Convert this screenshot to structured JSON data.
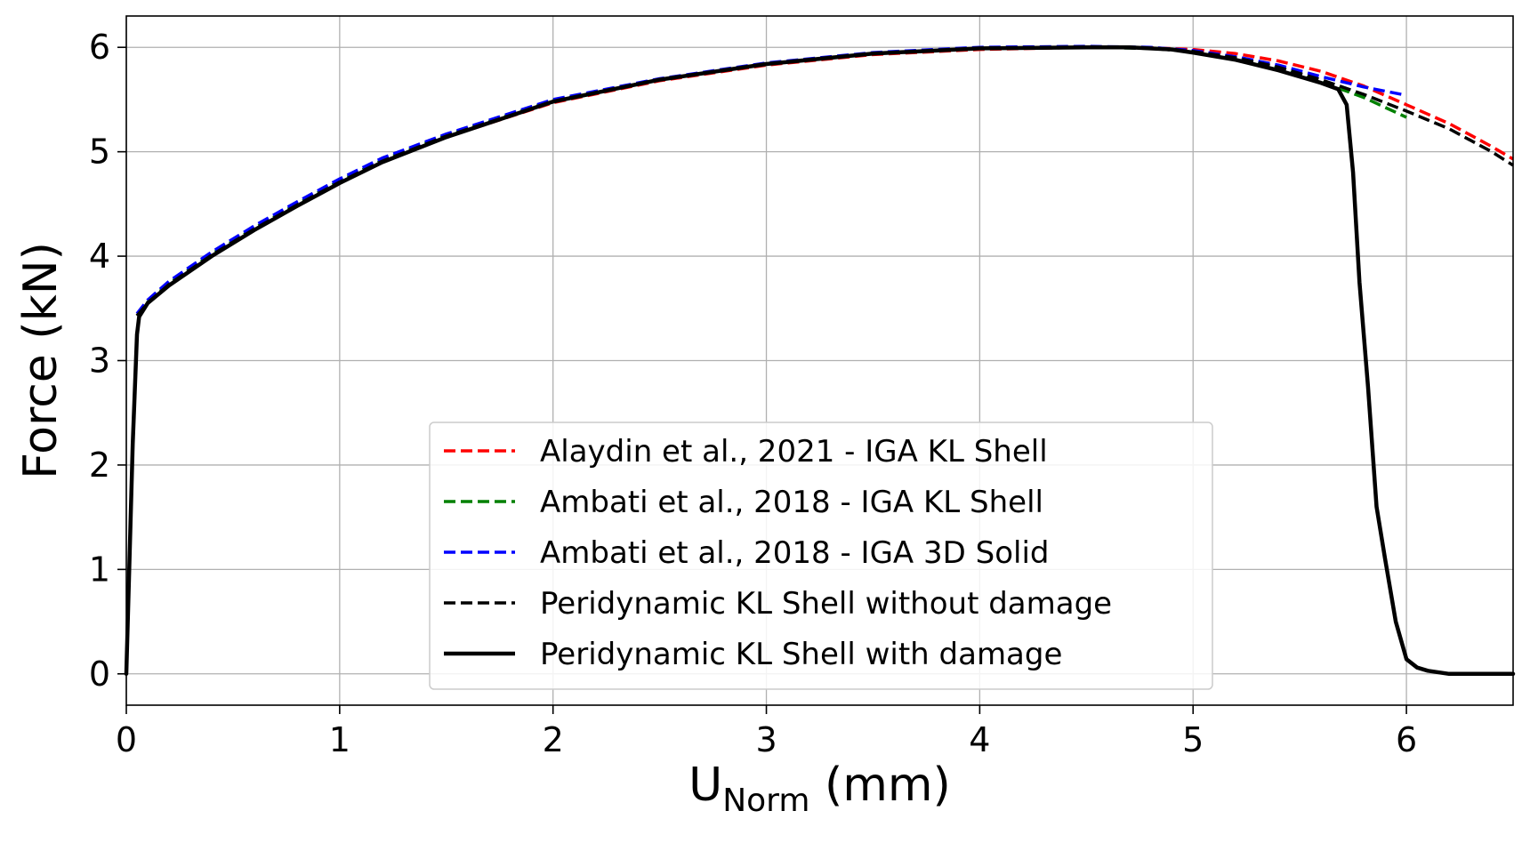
{
  "chart_data": {
    "type": "line",
    "xlabel": "U",
    "xlabel_sub": "Norm",
    "xlabel_unit": " (mm)",
    "ylabel": "Force (kN)",
    "xlim": [
      0,
      6.5
    ],
    "ylim": [
      -0.3,
      6.3
    ],
    "xticks": [
      0,
      1,
      2,
      3,
      4,
      5,
      6
    ],
    "yticks": [
      0,
      1,
      2,
      3,
      4,
      5,
      6
    ],
    "grid": true,
    "legend_position": "bottom-center",
    "series": [
      {
        "name": "Alaydin et al., 2021 - IGA KL Shell",
        "color": "#ff0000",
        "style": "dashed",
        "x": [
          0.05,
          0.1,
          0.2,
          0.4,
          0.6,
          0.8,
          1.0,
          1.2,
          1.5,
          2.0,
          2.5,
          3.0,
          3.5,
          4.0,
          4.5,
          4.8,
          5.0,
          5.2,
          5.4,
          5.6,
          5.8,
          6.0,
          6.2,
          6.4,
          6.5
        ],
        "y": [
          3.43,
          3.55,
          3.72,
          4.0,
          4.25,
          4.48,
          4.7,
          4.9,
          5.14,
          5.47,
          5.68,
          5.83,
          5.93,
          5.98,
          6.0,
          5.995,
          5.98,
          5.94,
          5.87,
          5.77,
          5.63,
          5.45,
          5.27,
          5.05,
          4.93
        ]
      },
      {
        "name": "Ambati et al., 2018 - IGA KL Shell",
        "color": "#008000",
        "style": "dashed",
        "x": [
          0.05,
          0.1,
          0.2,
          0.4,
          0.6,
          0.8,
          1.0,
          1.2,
          1.5,
          2.0,
          2.5,
          3.0,
          3.5,
          4.0,
          4.5,
          4.8,
          5.0,
          5.2,
          5.4,
          5.6,
          5.8,
          6.0
        ],
        "y": [
          3.43,
          3.56,
          3.74,
          4.02,
          4.27,
          4.5,
          4.72,
          4.92,
          5.16,
          5.49,
          5.69,
          5.84,
          5.94,
          5.99,
          6.0,
          5.99,
          5.96,
          5.9,
          5.8,
          5.67,
          5.52,
          5.33
        ]
      },
      {
        "name": "Ambati et al., 2018 - IGA 3D Solid",
        "color": "#0000ff",
        "style": "dashed",
        "x": [
          0.05,
          0.1,
          0.2,
          0.4,
          0.6,
          0.8,
          1.0,
          1.2,
          1.5,
          2.0,
          2.5,
          3.0,
          3.5,
          4.0,
          4.5,
          4.8,
          5.0,
          5.2,
          5.4,
          5.6,
          5.8,
          6.0
        ],
        "y": [
          3.45,
          3.58,
          3.76,
          4.04,
          4.29,
          4.52,
          4.74,
          4.94,
          5.17,
          5.5,
          5.7,
          5.85,
          5.95,
          6.0,
          6.01,
          6.0,
          5.97,
          5.91,
          5.83,
          5.72,
          5.62,
          5.54
        ]
      },
      {
        "name": "Peridynamic KL Shell without damage",
        "color": "#000000",
        "style": "dashed",
        "x": [
          0.05,
          0.1,
          0.2,
          0.4,
          0.6,
          0.8,
          1.0,
          1.2,
          1.5,
          2.0,
          2.5,
          3.0,
          3.5,
          4.0,
          4.5,
          4.8,
          5.0,
          5.2,
          5.4,
          5.6,
          5.8,
          6.0,
          6.2,
          6.4,
          6.5
        ],
        "y": [
          3.43,
          3.55,
          3.73,
          4.01,
          4.26,
          4.49,
          4.71,
          4.91,
          5.15,
          5.48,
          5.69,
          5.84,
          5.94,
          5.99,
          6.0,
          5.99,
          5.96,
          5.9,
          5.81,
          5.69,
          5.55,
          5.39,
          5.22,
          5.0,
          4.87
        ]
      },
      {
        "name": "Peridynamic KL Shell with damage",
        "color": "#000000",
        "style": "solid",
        "x": [
          0.0,
          0.03,
          0.05,
          0.06,
          0.1,
          0.2,
          0.4,
          0.6,
          0.8,
          1.0,
          1.2,
          1.5,
          2.0,
          2.5,
          3.0,
          3.5,
          4.0,
          4.5,
          4.7,
          4.9,
          5.0,
          5.2,
          5.4,
          5.6,
          5.68,
          5.72,
          5.75,
          5.78,
          5.82,
          5.86,
          5.9,
          5.95,
          6.0,
          6.05,
          6.1,
          6.2,
          6.3,
          6.4,
          6.5
        ],
        "y": [
          0.0,
          2.2,
          3.25,
          3.42,
          3.55,
          3.72,
          4.0,
          4.25,
          4.48,
          4.7,
          4.9,
          5.14,
          5.48,
          5.69,
          5.84,
          5.94,
          5.99,
          6.0,
          6.0,
          5.98,
          5.95,
          5.88,
          5.78,
          5.66,
          5.6,
          5.45,
          4.8,
          3.75,
          2.75,
          1.6,
          1.1,
          0.5,
          0.14,
          0.06,
          0.03,
          0.0,
          0.0,
          0.0,
          0.0
        ]
      }
    ]
  }
}
